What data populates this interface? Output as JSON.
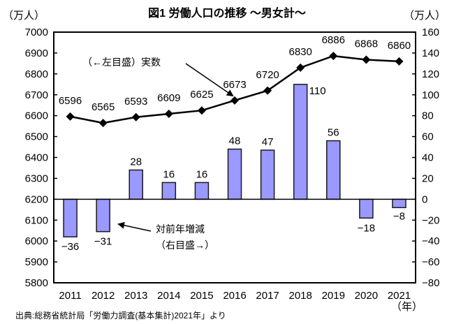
{
  "chart_data": {
    "type": "bar+line",
    "title": "図1 労働人口の推移 ～男女計～",
    "categories": [
      "2011",
      "2012",
      "2013",
      "2014",
      "2015",
      "2016",
      "2017",
      "2018",
      "2019",
      "2020",
      "2021"
    ],
    "xlabel": "（年）",
    "y_left": {
      "label": "（万人）",
      "range": [
        5800,
        7000
      ],
      "ticks": [
        7000,
        6900,
        6800,
        6700,
        6600,
        6500,
        6400,
        6300,
        6200,
        6100,
        6000,
        5900,
        5800
      ]
    },
    "y_right": {
      "label": "（万人）",
      "range": [
        -80,
        160
      ],
      "ticks": [
        160,
        140,
        120,
        100,
        80,
        60,
        40,
        20,
        0,
        -20,
        -40,
        -60,
        -80
      ]
    },
    "series": [
      {
        "name": "（←左目盛）実数",
        "type": "line",
        "axis": "left",
        "values": [
          6596,
          6565,
          6593,
          6609,
          6625,
          6673,
          6720,
          6830,
          6886,
          6868,
          6860
        ],
        "labels": [
          "6596",
          "6565",
          "6593",
          "6609",
          "6625",
          "6673",
          "6720",
          "6830",
          "6886",
          "6868",
          "6860"
        ]
      },
      {
        "name": "対前年増減（右目盛→）",
        "type": "bar",
        "axis": "right",
        "values": [
          -36,
          -31,
          28,
          16,
          16,
          48,
          47,
          110,
          56,
          -18,
          -8
        ],
        "labels": [
          "−36",
          "−31",
          "28",
          "16",
          "16",
          "48",
          "47",
          "110",
          "56",
          "−18",
          "−8"
        ]
      }
    ],
    "annotations": {
      "line_label": "（←左目盛）実数",
      "bar_label_1": "対前年増減",
      "bar_label_2": "（右目盛→）"
    },
    "colors": {
      "bar_fill": "#9999ff",
      "bar_stroke": "#1a1a1a",
      "line": "#000000"
    },
    "legend": "inline-annotations",
    "grid": false
  },
  "source": "出典:総務省統計局「労働力調査(基本集計)2021年」より"
}
